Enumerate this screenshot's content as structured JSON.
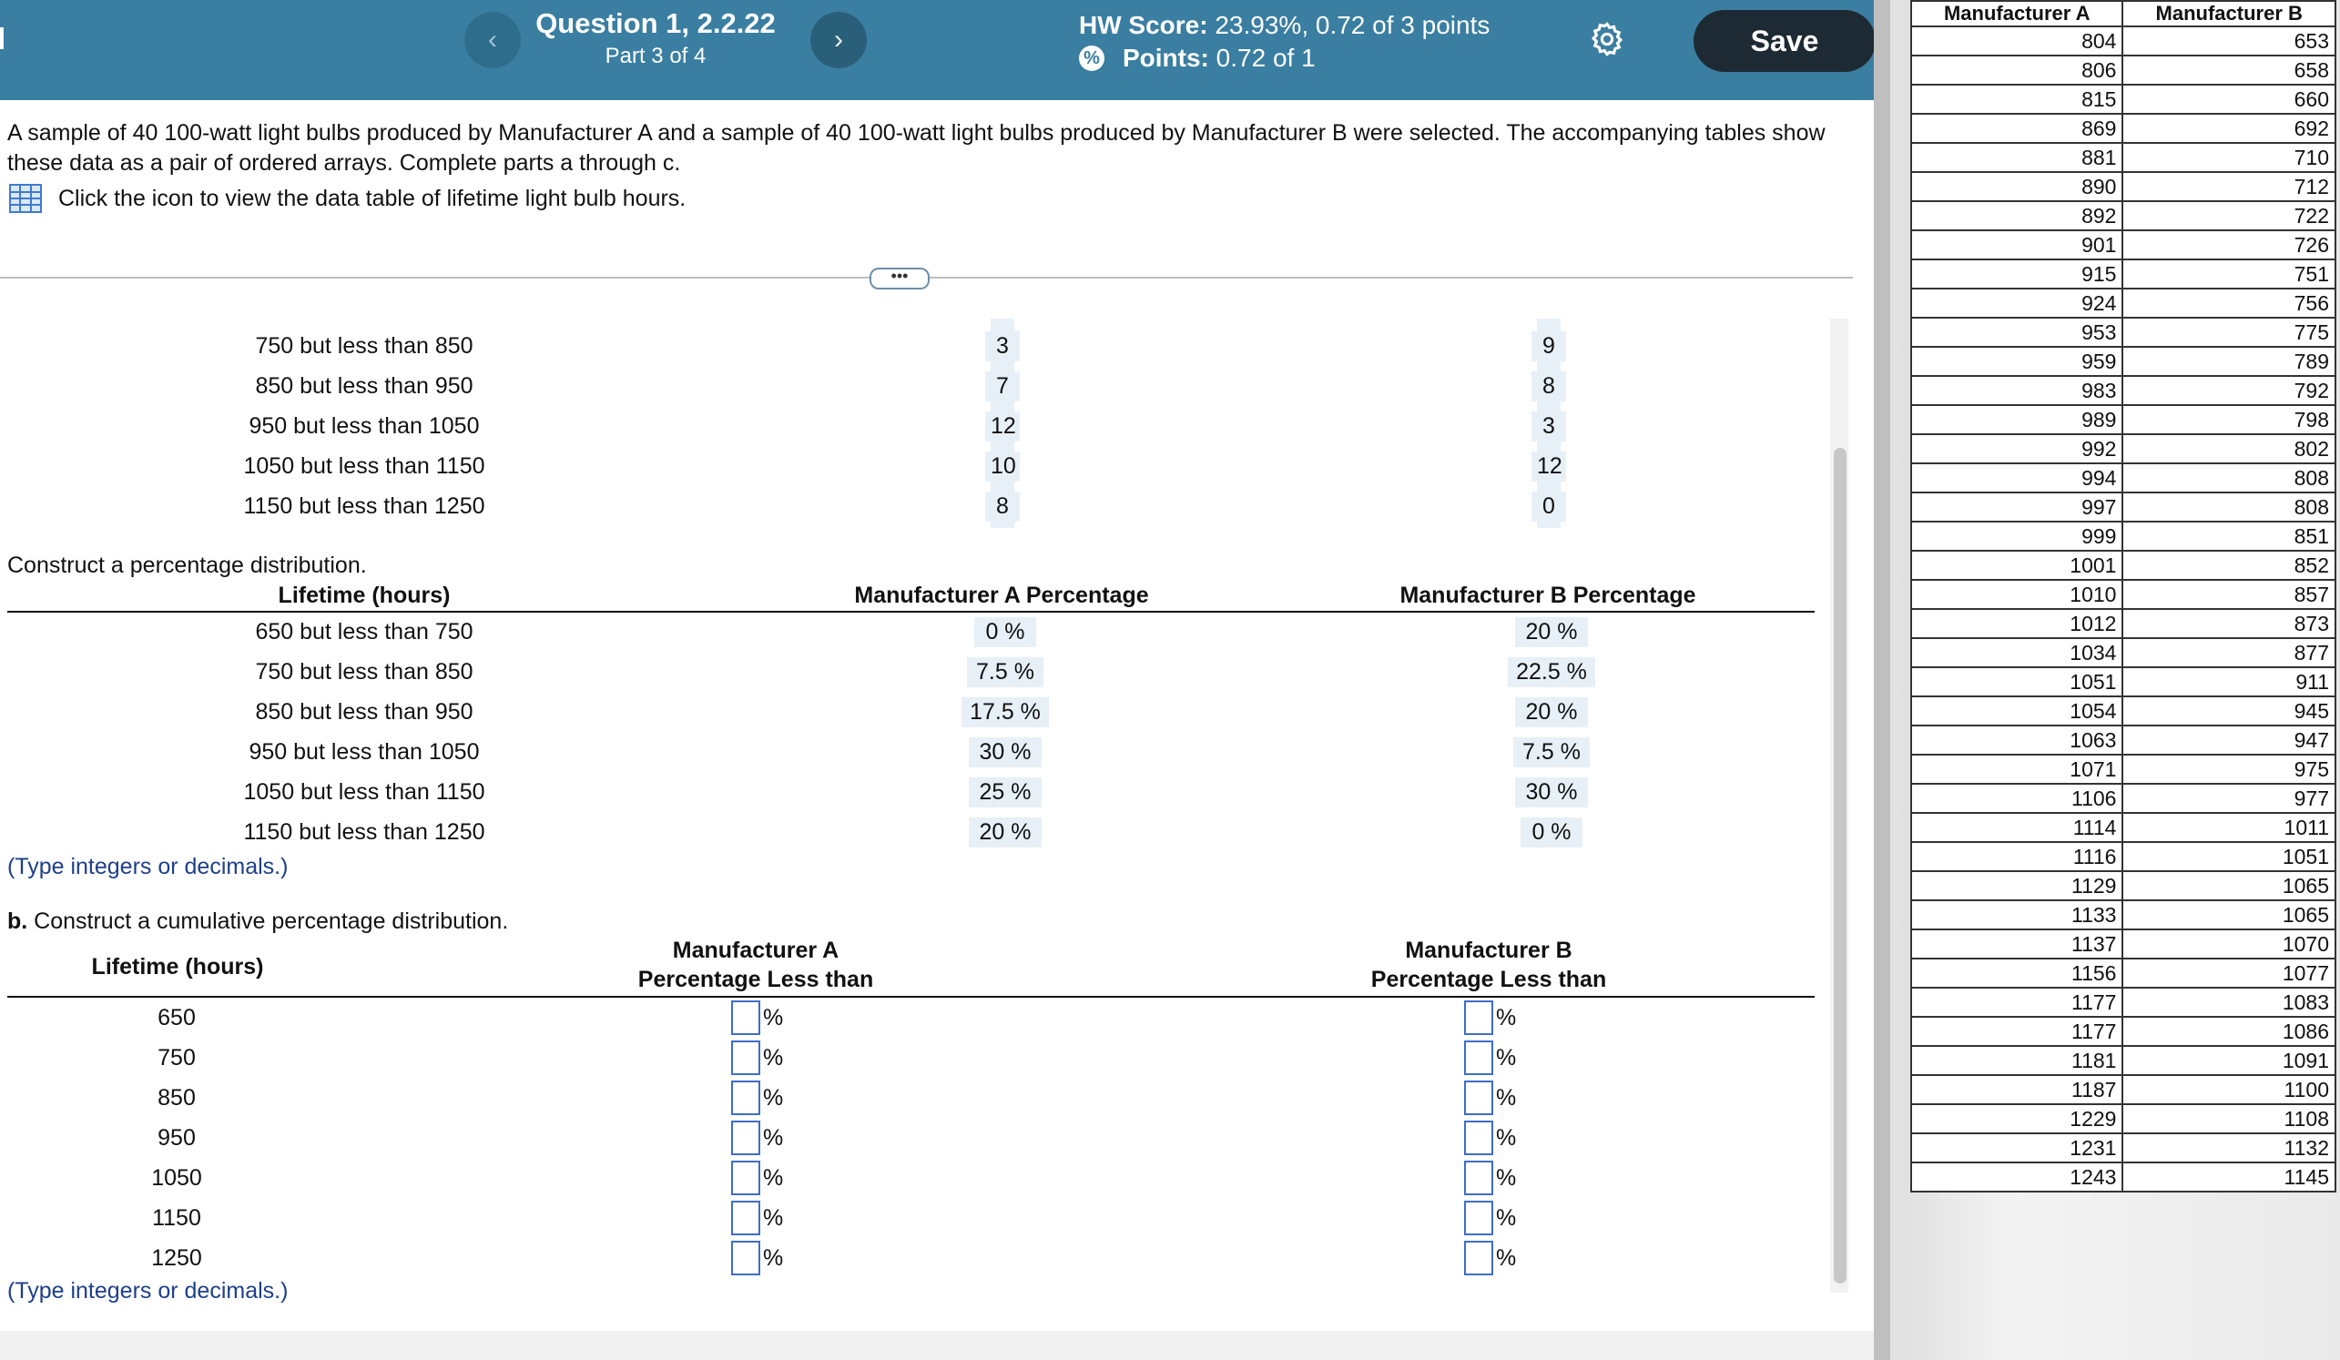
{
  "header": {
    "question_title": "Question 1, 2.2.22",
    "part": "Part 3 of 4",
    "hw_score_label": "HW Score:",
    "hw_score_value": "23.93%, 0.72 of 3 points",
    "points_label": "Points:",
    "points_value": "0.72 of 1",
    "save_label": "Save",
    "prev_glyph": "‹",
    "next_glyph": "›"
  },
  "intro_text": "A sample of 40 100-watt light bulbs produced by Manufacturer A and a sample of 40 100-watt light bulbs produced by Manufacturer B were selected. The accompanying tables show these data as a pair of ordered arrays. Complete parts a through c.",
  "data_link_text": "Click the icon to view the data table of lifetime light bulb hours.",
  "more_glyph": "•••",
  "frequency_partial": {
    "rows": [
      {
        "label": "750 but less than 850",
        "a": "3",
        "b": "9"
      },
      {
        "label": "850 but less than 950",
        "a": "7",
        "b": "8"
      },
      {
        "label": "950 but less than 1050",
        "a": "12",
        "b": "3"
      },
      {
        "label": "1050 but less than 1150",
        "a": "10",
        "b": "12"
      },
      {
        "label": "1150 but less than 1250",
        "a": "8",
        "b": "0"
      }
    ]
  },
  "percentage": {
    "prompt": "Construct a percentage distribution.",
    "col_lifetime": "Lifetime (hours)",
    "col_a": "Manufacturer A Percentage",
    "col_b": "Manufacturer B Percentage",
    "rows": [
      {
        "label": "650 but less than 750",
        "a": "0 %",
        "b": "20 %"
      },
      {
        "label": "750 but less than 850",
        "a": "7.5 %",
        "b": "22.5 %"
      },
      {
        "label": "850 but less than 950",
        "a": "17.5 %",
        "b": "20 %"
      },
      {
        "label": "950 but less than 1050",
        "a": "30 %",
        "b": "7.5 %"
      },
      {
        "label": "1050 but less than 1150",
        "a": "25 %",
        "b": "30 %"
      },
      {
        "label": "1150 but less than 1250",
        "a": "20 %",
        "b": "0 %"
      }
    ],
    "note": "(Type integers or decimals.)"
  },
  "cumulative": {
    "prompt_bold": "b.",
    "prompt": " Construct a cumulative percentage distribution.",
    "col_lifetime": "Lifetime (hours)",
    "col_a_line1": "Manufacturer A",
    "col_a_line2": "Percentage Less than",
    "col_b_line1": "Manufacturer B",
    "col_b_line2": "Percentage Less than",
    "rows": [
      "650",
      "750",
      "850",
      "950",
      "1050",
      "1150",
      "1250"
    ],
    "pct_sign": "%",
    "note": "(Type integers or decimals.)"
  },
  "side_table": {
    "col_a": "Manufacturer A",
    "col_b": "Manufacturer B",
    "rows": [
      [
        "804",
        "653"
      ],
      [
        "806",
        "658"
      ],
      [
        "815",
        "660"
      ],
      [
        "869",
        "692"
      ],
      [
        "881",
        "710"
      ],
      [
        "890",
        "712"
      ],
      [
        "892",
        "722"
      ],
      [
        "901",
        "726"
      ],
      [
        "915",
        "751"
      ],
      [
        "924",
        "756"
      ],
      [
        "953",
        "775"
      ],
      [
        "959",
        "789"
      ],
      [
        "983",
        "792"
      ],
      [
        "989",
        "798"
      ],
      [
        "992",
        "802"
      ],
      [
        "994",
        "808"
      ],
      [
        "997",
        "808"
      ],
      [
        "999",
        "851"
      ],
      [
        "1001",
        "852"
      ],
      [
        "1010",
        "857"
      ],
      [
        "1012",
        "873"
      ],
      [
        "1034",
        "877"
      ],
      [
        "1051",
        "911"
      ],
      [
        "1054",
        "945"
      ],
      [
        "1063",
        "947"
      ],
      [
        "1071",
        "975"
      ],
      [
        "1106",
        "977"
      ],
      [
        "1114",
        "1011"
      ],
      [
        "1116",
        "1051"
      ],
      [
        "1129",
        "1065"
      ],
      [
        "1133",
        "1065"
      ],
      [
        "1137",
        "1070"
      ],
      [
        "1156",
        "1077"
      ],
      [
        "1177",
        "1083"
      ],
      [
        "1177",
        "1086"
      ],
      [
        "1181",
        "1091"
      ],
      [
        "1187",
        "1100"
      ],
      [
        "1229",
        "1108"
      ],
      [
        "1231",
        "1132"
      ],
      [
        "1243",
        "1145"
      ]
    ]
  },
  "colors": {
    "header_bg": "#3a7ea1",
    "save_bg": "#1e2a33",
    "value_bg": "#e7f0f7",
    "input_border": "#3e6dc7",
    "note_color": "#1d3f8a"
  }
}
